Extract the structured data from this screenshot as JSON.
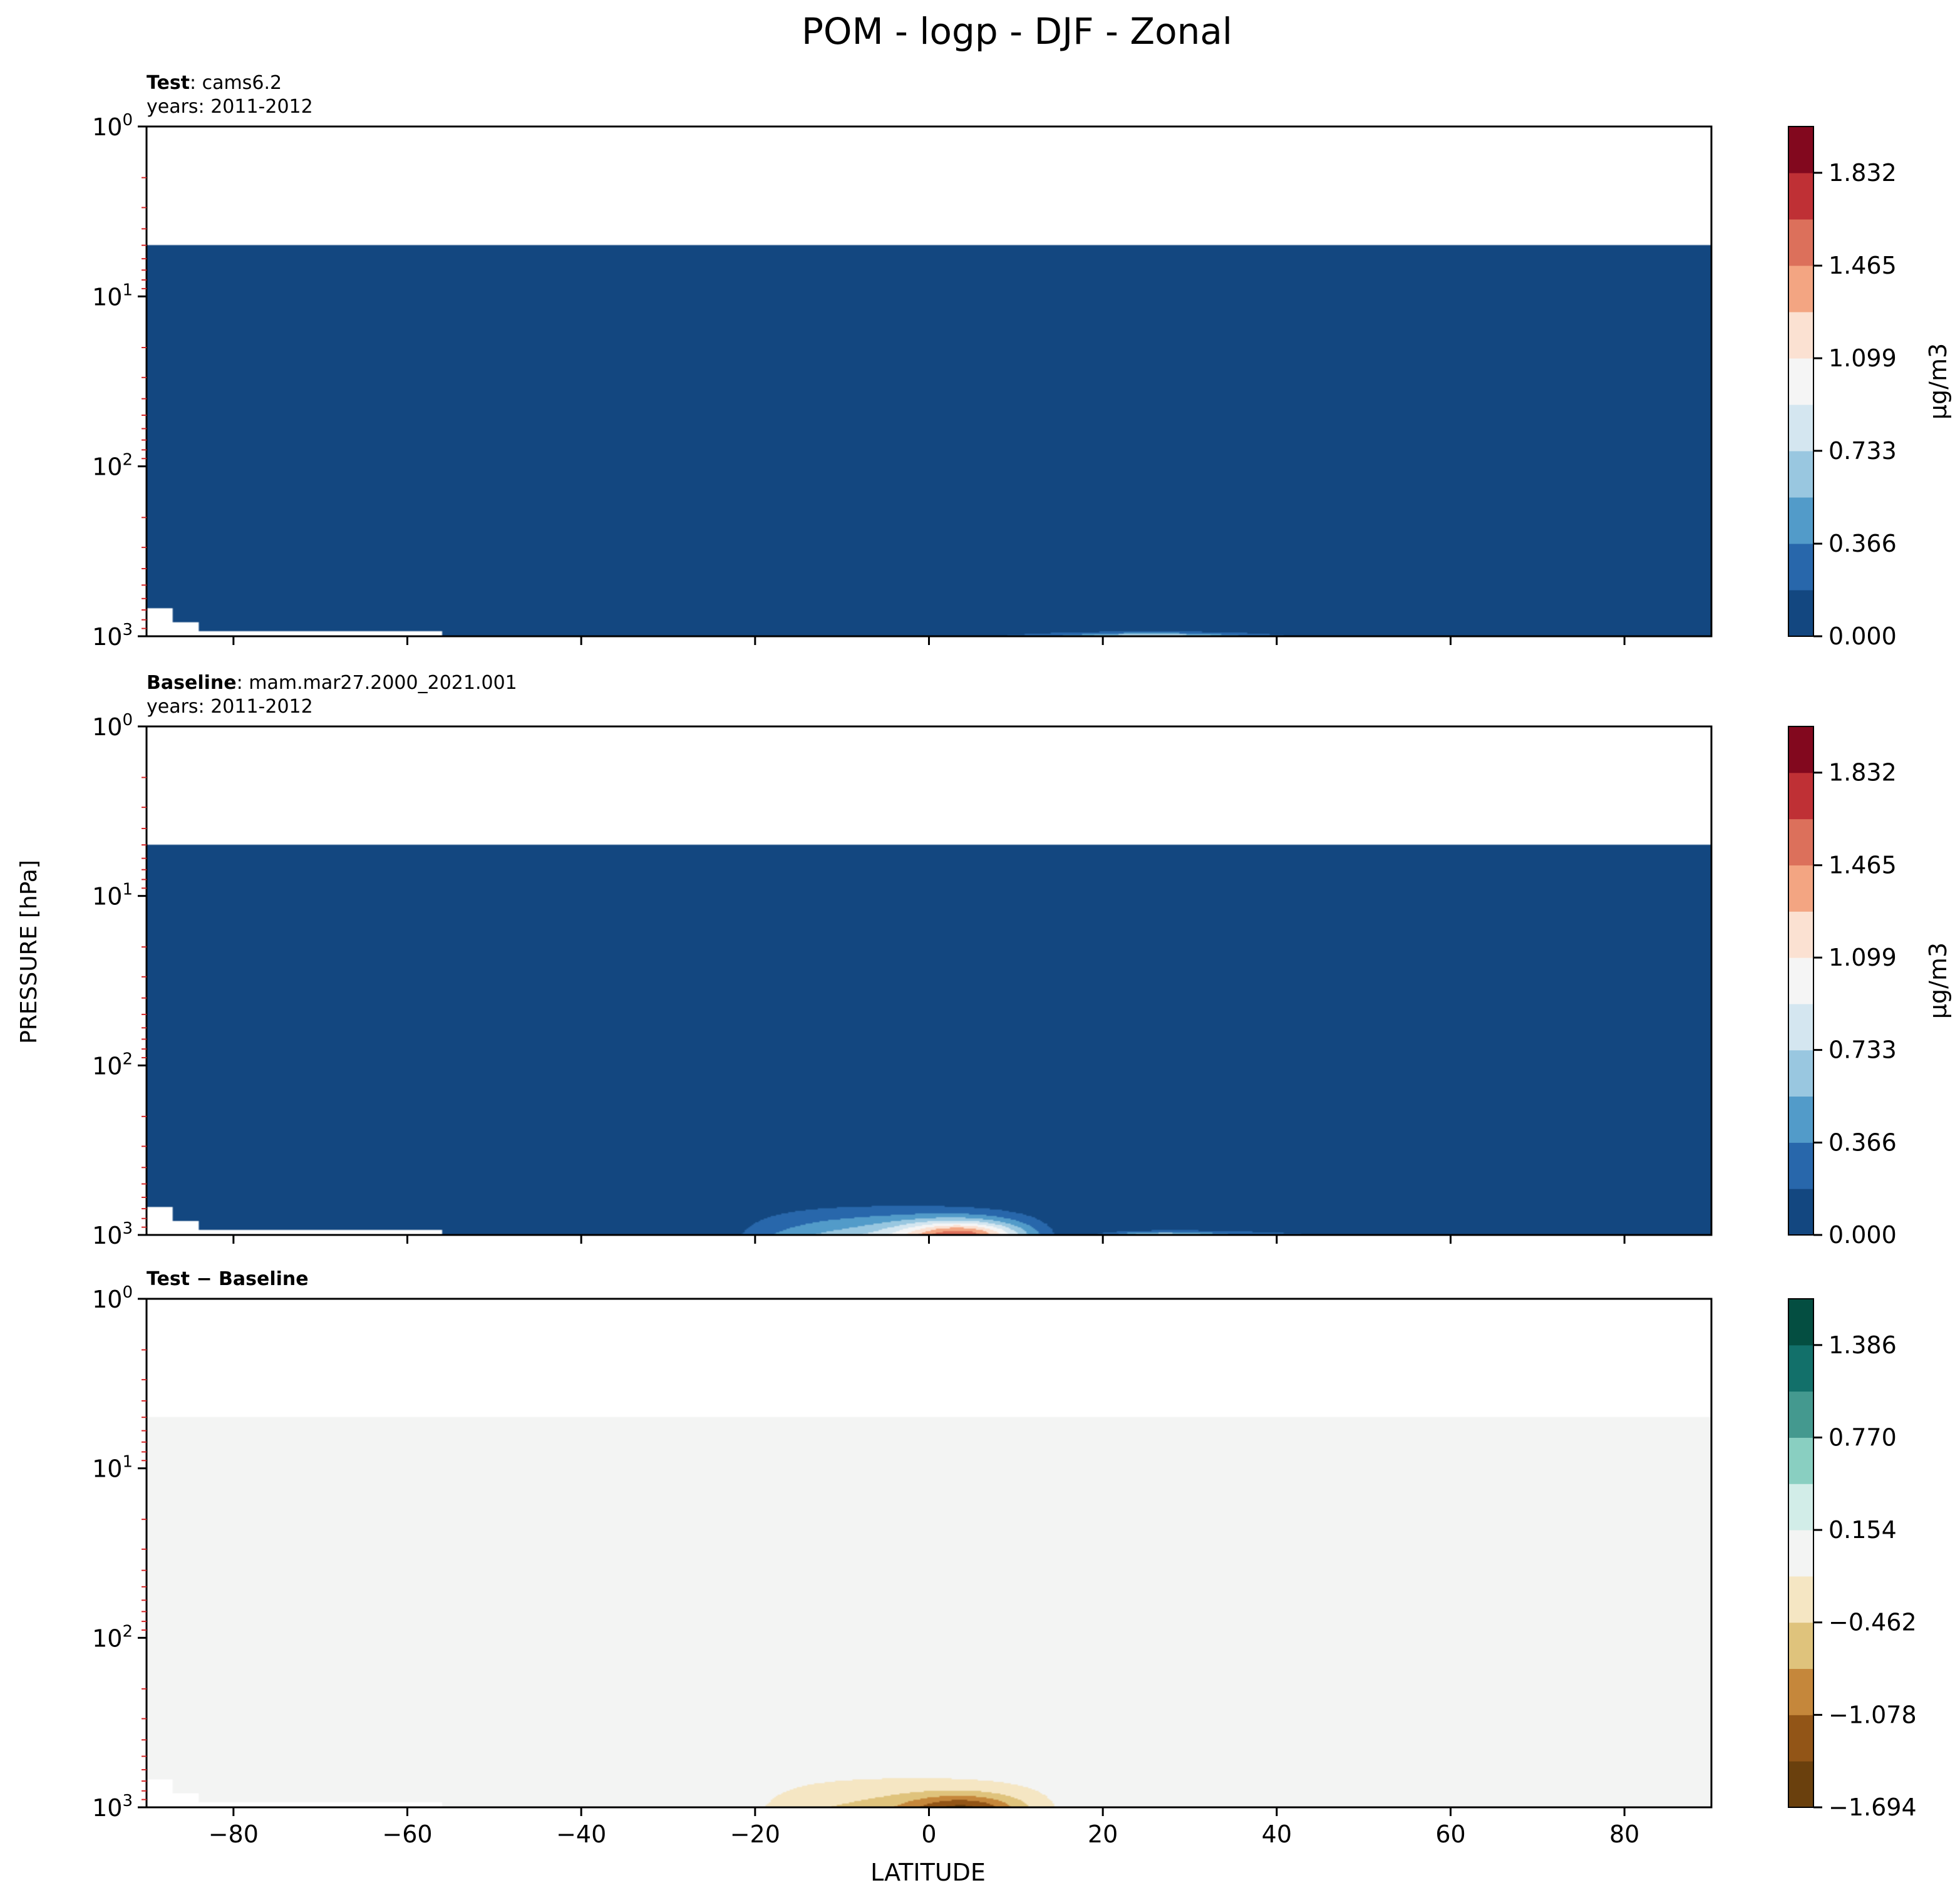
{
  "figure": {
    "title": "POM - logp - DJF - Zonal",
    "ylabel": "PRESSURE [hPa]",
    "xlabel": "LATITUDE"
  },
  "colors": {
    "field_cmap": [
      "#134780",
      "#2867ab",
      "#529bc9",
      "#99c7e0",
      "#d4e6f0",
      "#f5f5f5",
      "#fbe1d2",
      "#f3a582",
      "#dc705b",
      "#bf3035",
      "#82081e"
    ],
    "diff_cmap": [
      "#6a400d",
      "#925517",
      "#c5873b",
      "#dfc37c",
      "#f5e6c3",
      "#f3f4f3",
      "#d2ede8",
      "#89cfc1",
      "#44998f",
      "#12706a",
      "#044e41"
    ],
    "frame": "#000000",
    "minor_tick": "#d62728"
  },
  "chart_data": [
    {
      "type": "heatmap",
      "panel": "test",
      "title_bold": "Test",
      "title_rest": ": cams6.2",
      "subtitle": "years: 2011-2012",
      "x": {
        "range": [
          -90,
          90
        ],
        "ticks": [
          -80,
          -60,
          -40,
          -20,
          0,
          20,
          40,
          60,
          80
        ],
        "tick_labels_shown": false
      },
      "y": {
        "scale": "log",
        "range": [
          1000,
          1
        ],
        "inverted": true,
        "ticks": [
          1,
          10,
          100,
          1000
        ],
        "tick_base": "10",
        "tick_exps": [
          "0",
          "1",
          "2",
          "3"
        ]
      },
      "model_top_hPa": 5,
      "background_value": 0.0,
      "colorbar": {
        "label": "μg/m3",
        "min": 0.0,
        "max": 2.015,
        "levels": 11,
        "tick_values": [
          0.0,
          0.366,
          0.733,
          1.099,
          1.465,
          1.832
        ],
        "tick_labels": [
          "0.000",
          "0.366",
          "0.733",
          "1.099",
          "1.465",
          "1.832"
        ]
      },
      "features": [
        {
          "lat_range": [
            -1,
            50
          ],
          "p_top_hPa": 880,
          "peak_value": 0.9,
          "peak_lat": 26,
          "peak_p_hPa": 990
        }
      ]
    },
    {
      "type": "heatmap",
      "panel": "baseline",
      "title_bold": "Baseline",
      "title_rest": ": mam.mar27.2000_2021.001",
      "subtitle": "years: 2011-2012",
      "x": {
        "range": [
          -90,
          90
        ],
        "ticks": [
          -80,
          -60,
          -40,
          -20,
          0,
          20,
          40,
          60,
          80
        ],
        "tick_labels_shown": false
      },
      "y": {
        "scale": "log",
        "range": [
          1000,
          1
        ],
        "inverted": true,
        "ticks": [
          1,
          10,
          100,
          1000
        ],
        "tick_base": "10",
        "tick_exps": [
          "0",
          "1",
          "2",
          "3"
        ]
      },
      "model_top_hPa": 5,
      "background_value": 0.0,
      "colorbar": {
        "label": "μg/m3",
        "min": 0.0,
        "max": 2.015,
        "levels": 11,
        "tick_values": [
          0.0,
          0.366,
          0.733,
          1.099,
          1.465,
          1.832
        ],
        "tick_labels": [
          "0.000",
          "0.366",
          "0.733",
          "1.099",
          "1.465",
          "1.832"
        ]
      },
      "features": [
        {
          "lat_range": [
            -25,
            17
          ],
          "p_top_hPa": 560,
          "peak_value": 2.0,
          "peak_lat": 5,
          "peak_p_hPa": 960
        },
        {
          "lat_range": [
            15,
            50
          ],
          "p_top_hPa": 880,
          "peak_value": 0.9,
          "peak_lat": 26,
          "peak_p_hPa": 990
        }
      ]
    },
    {
      "type": "heatmap",
      "panel": "difference",
      "title_bold": "Test − Baseline",
      "title_rest": "",
      "subtitle": "",
      "x": {
        "range": [
          -90,
          90
        ],
        "ticks": [
          -80,
          -60,
          -40,
          -20,
          0,
          20,
          40,
          60,
          80
        ],
        "tick_labels": [
          "−80",
          "−60",
          "−40",
          "−20",
          "0",
          "20",
          "40",
          "60",
          "80"
        ],
        "label": "LATITUDE"
      },
      "y": {
        "scale": "log",
        "range": [
          1000,
          1
        ],
        "inverted": true,
        "ticks": [
          1,
          10,
          100,
          1000
        ],
        "tick_base": "10",
        "tick_exps": [
          "0",
          "1",
          "2",
          "3"
        ]
      },
      "model_top_hPa": 5,
      "background_value": 0.0,
      "colorbar": {
        "label": "",
        "min": -1.694,
        "max": 1.694,
        "levels": 11,
        "tick_values": [
          -1.694,
          -1.078,
          -0.462,
          0.154,
          0.77,
          1.386
        ],
        "tick_labels": [
          "−1.694",
          "−1.078",
          "−0.462",
          "0.154",
          "0.770",
          "1.386"
        ]
      },
      "features": [
        {
          "lat_range": [
            -22,
            17
          ],
          "p_top_hPa": 560,
          "peak_value": -1.694,
          "peak_lat": 5,
          "peak_p_hPa": 980
        }
      ]
    }
  ]
}
